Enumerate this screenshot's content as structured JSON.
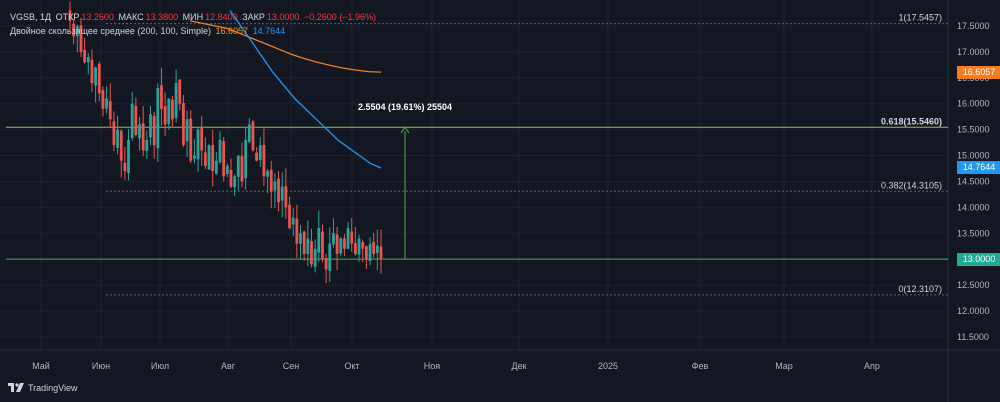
{
  "legend": {
    "symbol": "VGSB, 1Д",
    "open_label": "ОТКР",
    "open_value": "13.2600",
    "high_label": "МАКС",
    "high_value": "13.3800",
    "low_label": "МИН",
    "low_value": "12.8400",
    "close_label": "ЗАКР",
    "close_value": "13.0000",
    "change": "−0.2600 (−1.96%)",
    "ma_label": "Двойное скользящее среднее (200, 100, Simple)",
    "ma_value_1": "16.6057",
    "ma_value_2": "14.7644"
  },
  "price_scale": [
    "17.5000",
    "17.0000",
    "16.5000",
    "16.0000",
    "15.5000",
    "15.0000",
    "14.5000",
    "14.0000",
    "13.5000",
    "13.0000",
    "12.5000",
    "12.0000",
    "11.5000"
  ],
  "price_badges": [
    {
      "label": "16.6057",
      "price": 16.6057,
      "color": "#f57c1f"
    },
    {
      "label": "14.7644",
      "price": 14.7644,
      "color": "#2196f3"
    },
    {
      "label": "13.0000",
      "price": 13.0,
      "color": "#22ab94"
    }
  ],
  "time_scale": [
    "Май",
    "Июн",
    "Июл",
    "Авг",
    "Сен",
    "Окт",
    "Ноя",
    "Дек",
    "2025",
    "Фев",
    "Мар",
    "Апр"
  ],
  "fib_levels": [
    {
      "label": "1(17.5457)",
      "price": 17.5457,
      "style": "dashed"
    },
    {
      "label": "0.618(15.5460)",
      "price": 15.546,
      "style": "solid"
    },
    {
      "label": "0.382(14.3105)",
      "price": 14.3105,
      "style": "dashed"
    },
    {
      "label": "0(12.3107)",
      "price": 12.3107,
      "style": "dashed"
    }
  ],
  "measure": {
    "label": "2.5504 (19.61%) 25504",
    "from": 13.0,
    "to": 15.55
  },
  "current_price_line": 13.0,
  "brand": "TradingView",
  "colors": {
    "up": "#26a69a",
    "down": "#ef5350",
    "ma200": "#f57c1f",
    "ma100": "#2196f3",
    "fib": "#4caf50",
    "grid": "#1e222d",
    "background": "#131722"
  },
  "chart_data": {
    "type": "candlestick",
    "ylim": [
      11.3,
      17.8
    ],
    "x": [
      "Май",
      "Июн",
      "Июл",
      "Авг",
      "Сен",
      "Окт",
      "Ноя",
      "Дек",
      "2025",
      "Фев",
      "Мар",
      "Апр"
    ],
    "closes": [
      17.6,
      17.3,
      17.5,
      17.0,
      16.8,
      16.9,
      16.4,
      16.7,
      16.2,
      15.9,
      16.1,
      15.7,
      15.2,
      15.5,
      14.9,
      14.7,
      15.3,
      16.0,
      15.4,
      15.6,
      15.1,
      15.3,
      15.8,
      15.2,
      16.3,
      15.9,
      15.6,
      16.1,
      15.7,
      16.4,
      16.0,
      15.2,
      15.7,
      14.9,
      15.0,
      15.5,
      15.1,
      14.8,
      15.2,
      14.7,
      14.9,
      15.3,
      14.6,
      14.8,
      14.4,
      14.6,
      15.0,
      14.5,
      15.3,
      15.6,
      15.1,
      14.9,
      15.2,
      14.6,
      14.7,
      14.3,
      14.5,
      14.1,
      14.4,
      14.0,
      13.6,
      13.8,
      13.3,
      13.5,
      13.1,
      13.4,
      12.9,
      13.2,
      13.6,
      13.0,
      12.8,
      13.3,
      13.5,
      13.1,
      13.4,
      13.2,
      13.6,
      13.3,
      13.1,
      13.4,
      13.2,
      13.0,
      13.3,
      13.1,
      13.26,
      13.0
    ],
    "ma200": [
      17.6,
      17.55,
      17.5,
      17.45,
      17.35,
      17.25,
      17.15,
      17.05,
      16.95,
      16.87,
      16.8,
      16.74,
      16.69,
      16.65,
      16.62,
      16.61
    ],
    "ma100": [
      17.8,
      17.5,
      17.2,
      16.9,
      16.6,
      16.35,
      16.1,
      15.9,
      15.7,
      15.5,
      15.3,
      15.15,
      15.0,
      14.85,
      14.76
    ]
  }
}
